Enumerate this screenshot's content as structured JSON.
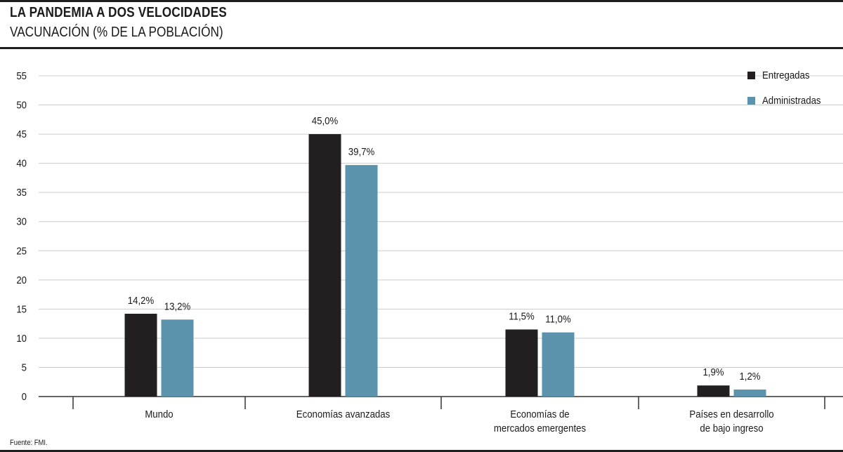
{
  "header": {
    "title": "LA PANDEMIA A DOS VELOCIDADES",
    "subtitle": "VACUNACIÓN (% DE LA POBLACIÓN)"
  },
  "footer": {
    "source": "Fuente: FMI."
  },
  "colors": {
    "entregadas": "#231f20",
    "administradas": "#5b93ad",
    "grid": "#cccccc",
    "axis": "#333333"
  },
  "chart_data": {
    "type": "bar",
    "title": "",
    "xlabel": "",
    "ylabel": "",
    "ylim": [
      0,
      55
    ],
    "yticks": [
      0,
      5,
      10,
      15,
      20,
      25,
      30,
      35,
      40,
      45,
      50,
      55
    ],
    "grid": true,
    "legend_position": "top-right",
    "categories": [
      [
        "Mundo"
      ],
      [
        "Economías avanzadas"
      ],
      [
        "Economías de",
        "mercados emergentes"
      ],
      [
        "Países en desarrollo",
        "de bajo ingreso"
      ]
    ],
    "series": [
      {
        "name": "Entregadas",
        "color": "#231f20",
        "values": [
          14.2,
          45.0,
          11.5,
          1.9
        ],
        "labels": [
          "14,2%",
          "45,0%",
          "11,5%",
          "1,9%"
        ]
      },
      {
        "name": "Administradas",
        "color": "#5b93ad",
        "values": [
          13.2,
          39.7,
          11.0,
          1.2
        ],
        "labels": [
          "13,2%",
          "39,7%",
          "11,0%",
          "1,2%"
        ]
      }
    ]
  }
}
